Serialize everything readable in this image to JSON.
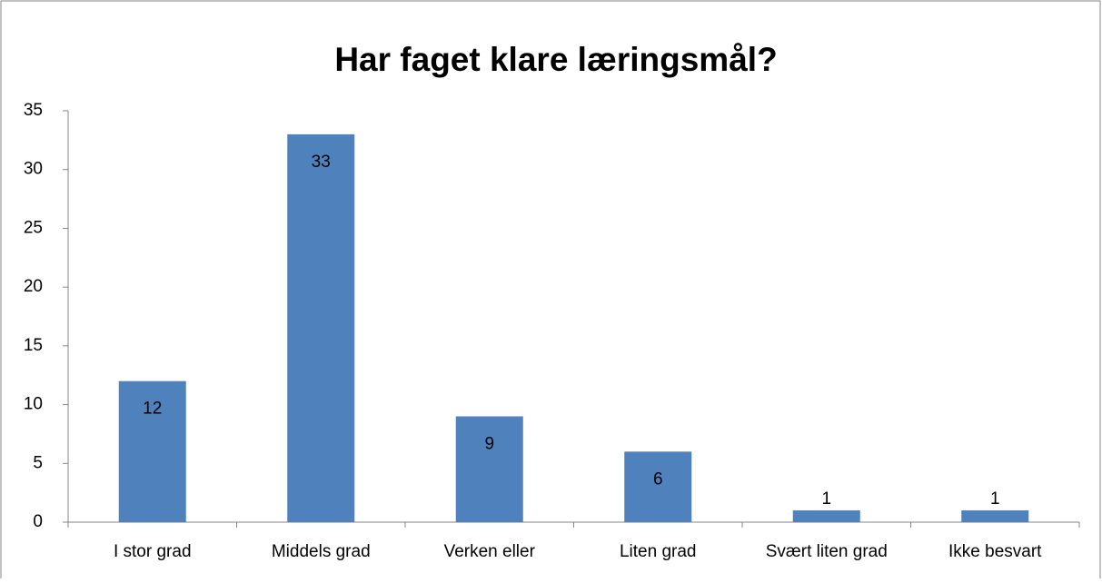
{
  "chart_data": {
    "type": "bar",
    "title": "Har faget klare læringsmål?",
    "categories": [
      "I stor grad",
      "Middels grad",
      "Verken eller",
      "Liten grad",
      "Svært liten grad",
      "Ikke besvart"
    ],
    "values": [
      12,
      33,
      9,
      6,
      1,
      1
    ],
    "color": "#4f81bd",
    "ylim": [
      0,
      35
    ],
    "yticks": [
      0,
      5,
      10,
      15,
      20,
      25,
      30,
      35
    ],
    "grid": false
  }
}
